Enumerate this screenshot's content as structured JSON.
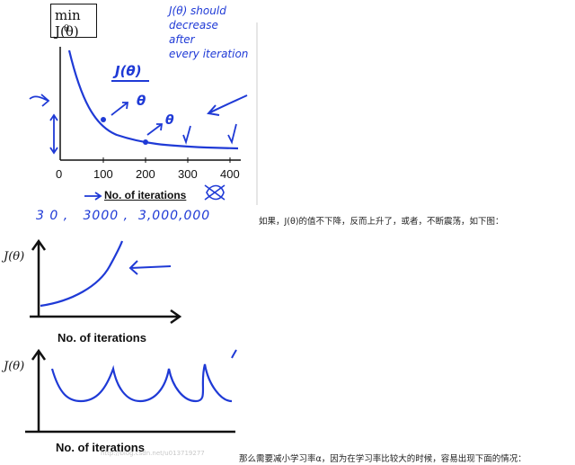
{
  "figure1": {
    "title_main": "min J(θ)",
    "title_sub": "θ",
    "note_lines": [
      "J(θ) should",
      "decrease",
      "after",
      "every iteration"
    ],
    "jtheta_label": "J(θ)",
    "theta_label_1": "θ",
    "theta_label_2": "θ",
    "x_ticks": [
      "0",
      "100",
      "200",
      "300",
      "400"
    ],
    "xlabel": "No. of iterations",
    "handwritten_numbers": "3 0 ,   3000 ,  3,000,000"
  },
  "caption_1": "如果，J(θ)的值不下降，反而上升了，或者，不断震荡，如下图：",
  "figure2": {
    "ylabel": "J(θ)",
    "xlabel": "No. of iterations"
  },
  "figure3": {
    "ylabel": "J(θ)",
    "xlabel": "No. of iterations",
    "watermark": "http://blog.csdn.net/u013719277"
  },
  "caption_2": "那么需要减小学习率α，因为在学习率比较大的时候，容易出现下面的情况：",
  "colors": {
    "ink_blue": "#1f3ad6",
    "axis": "#111111"
  }
}
